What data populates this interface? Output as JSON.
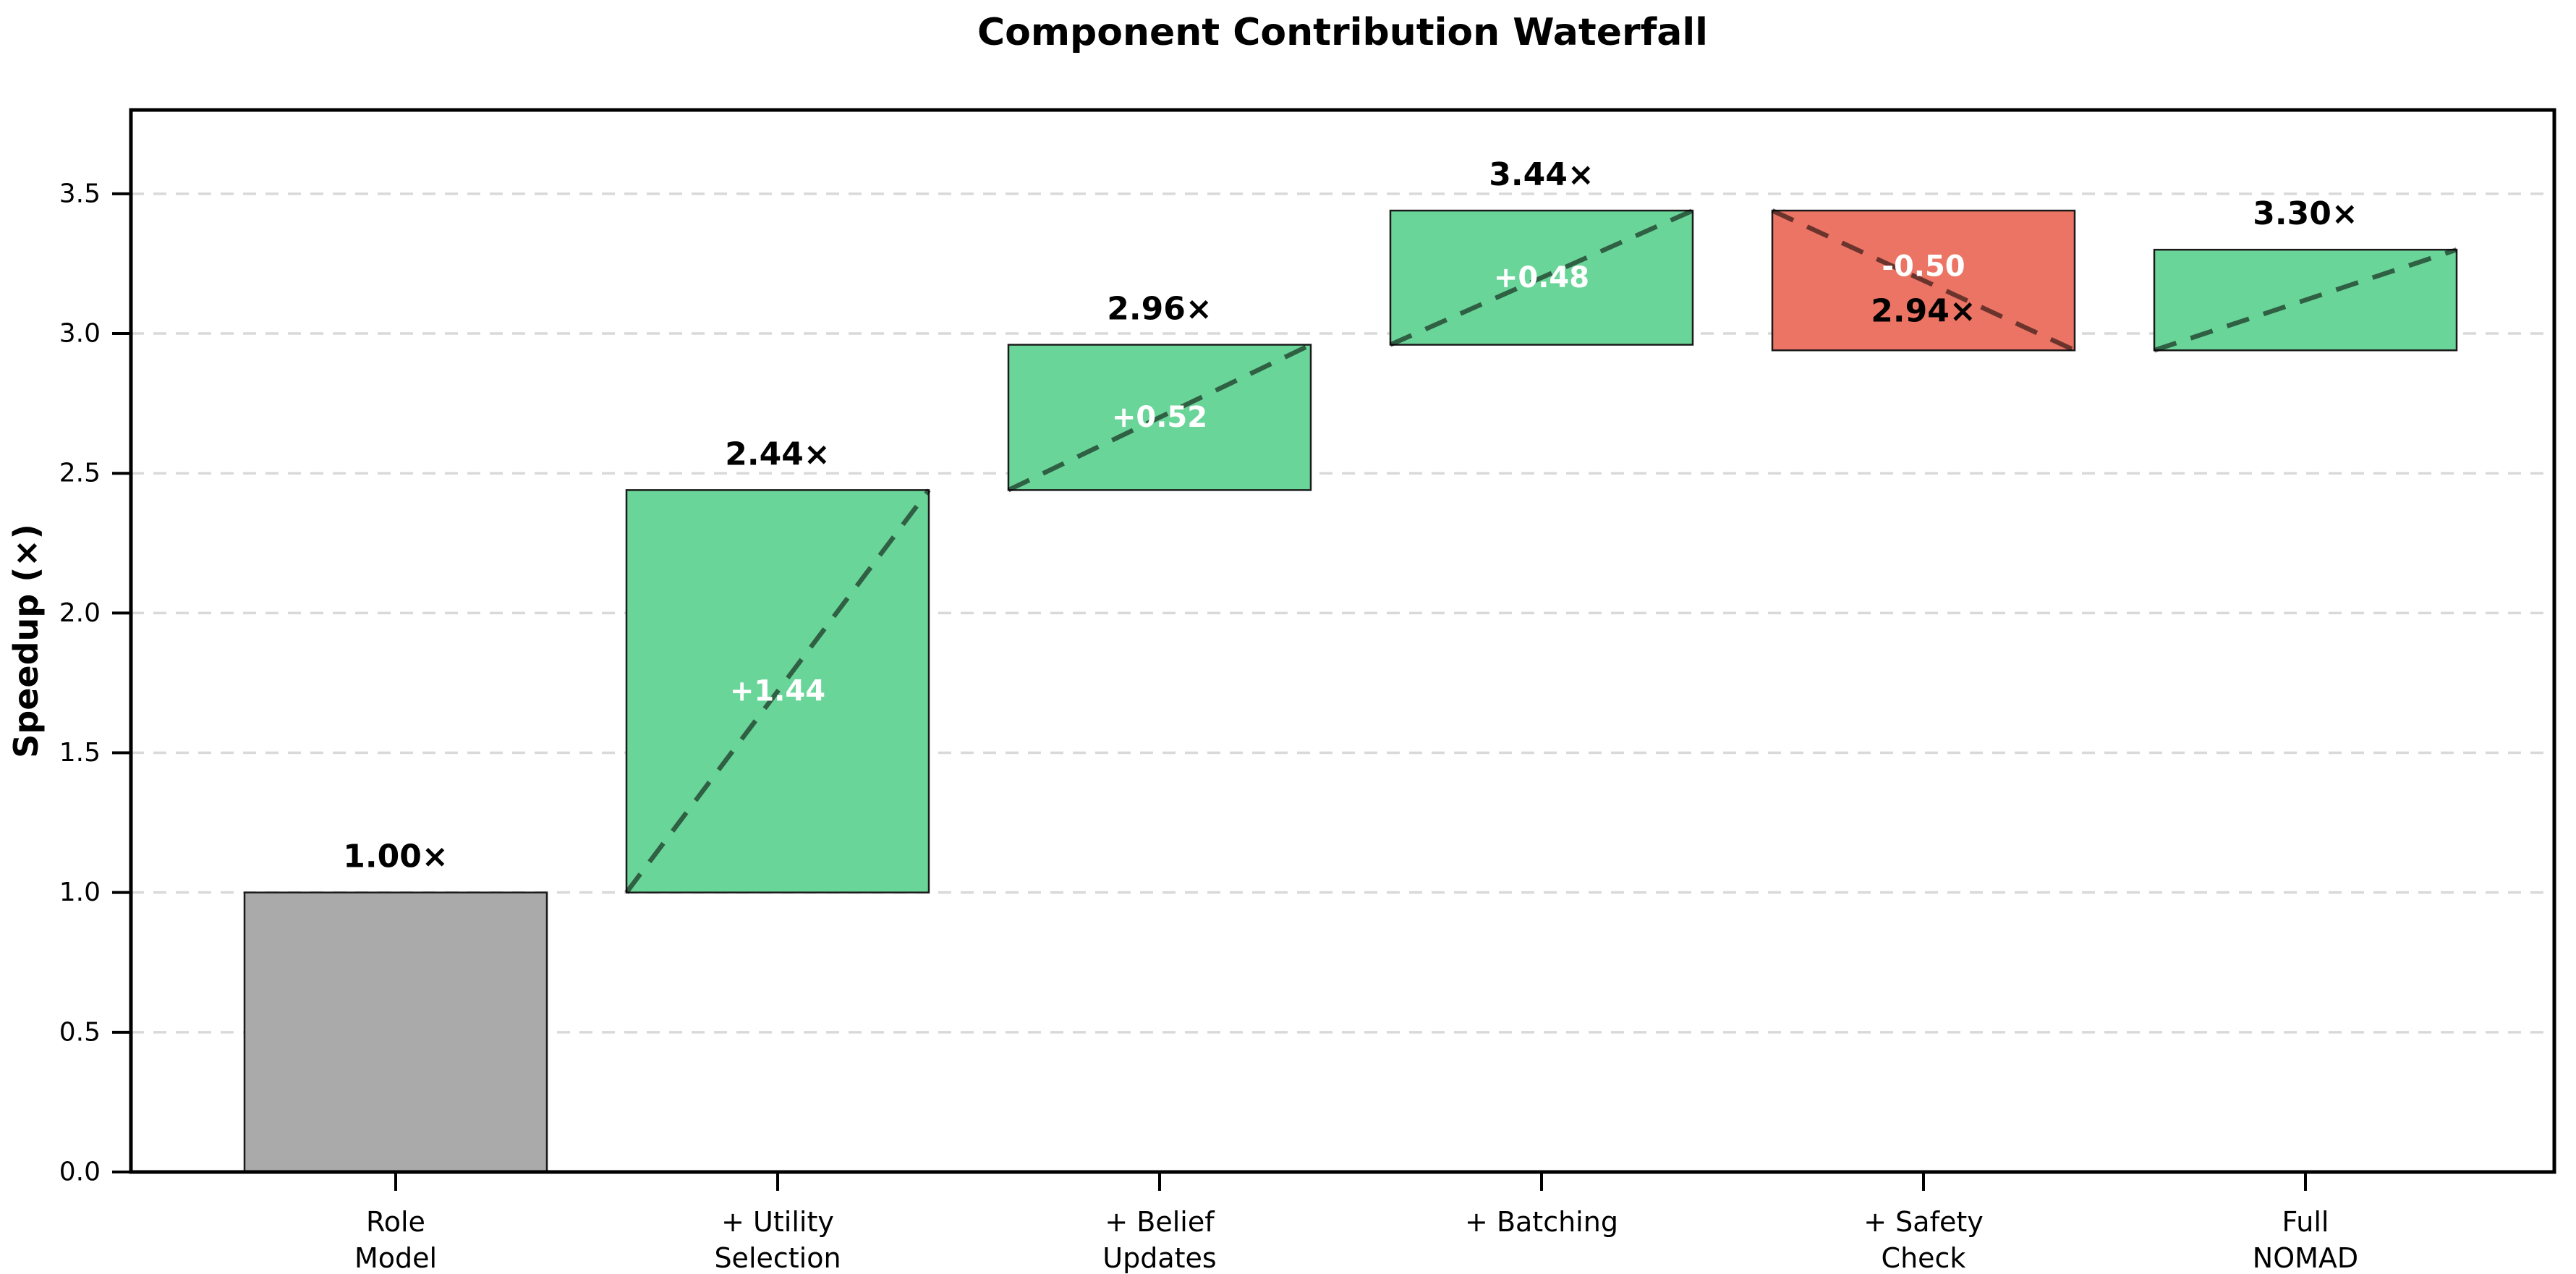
{
  "chart_data": {
    "type": "bar",
    "subtype": "waterfall",
    "title": "Component Contribution Waterfall",
    "ylabel": "Speedup (×)",
    "xlabel": "",
    "ylim": [
      0,
      3.8
    ],
    "yticks": [
      "0.0",
      "0.5",
      "1.0",
      "1.5",
      "2.0",
      "2.5",
      "3.0",
      "3.5"
    ],
    "ytick_values": [
      0.0,
      0.5,
      1.0,
      1.5,
      2.0,
      2.5,
      3.0,
      3.5
    ],
    "grid": "horizontal dashed, light gray, on half-unit ticks",
    "legend": "none",
    "categories": [
      "Role\nModel",
      "+ Utility\nSelection",
      "+ Belief\nUpdates",
      "+ Batching",
      "+ Safety\nCheck",
      "Full\nNOMAD"
    ],
    "bars": [
      {
        "category_lines": [
          "Role",
          "Model"
        ],
        "start": 0.0,
        "end": 1.0,
        "kind": "base",
        "cumulative_label": "1.00×",
        "delta_label": "",
        "connector": false
      },
      {
        "category_lines": [
          "+ Utility",
          "Selection"
        ],
        "start": 1.0,
        "end": 2.44,
        "kind": "increase",
        "cumulative_label": "2.44×",
        "delta_label": "+1.44",
        "connector": true
      },
      {
        "category_lines": [
          "+ Belief",
          "Updates"
        ],
        "start": 2.44,
        "end": 2.96,
        "kind": "increase",
        "cumulative_label": "2.96×",
        "delta_label": "+0.52",
        "connector": true
      },
      {
        "category_lines": [
          "+ Batching"
        ],
        "start": 2.96,
        "end": 3.44,
        "kind": "increase",
        "cumulative_label": "3.44×",
        "delta_label": "+0.48",
        "connector": true
      },
      {
        "category_lines": [
          "+ Safety",
          "Check"
        ],
        "start": 3.44,
        "end": 2.94,
        "kind": "decrease",
        "cumulative_label": "2.94×",
        "delta_label": "-0.50",
        "connector": true,
        "cumulative_label_inside": true
      },
      {
        "category_lines": [
          "Full",
          "NOMAD"
        ],
        "start": 2.94,
        "end": 3.3,
        "kind": "increase",
        "cumulative_label": "3.30×",
        "delta_label": "",
        "connector": true
      }
    ],
    "colors": {
      "increase": "#6ad598",
      "decrease": "#ec7465",
      "base": "#aaaaaa",
      "bar_edge": "#1a1a1a",
      "grid": "#d9d9d9",
      "connector": "rgba(0,0,0,0.55)",
      "axis": "#000000",
      "delta_text": "#ffffff",
      "label_text": "#000000",
      "background": "#ffffff"
    }
  }
}
